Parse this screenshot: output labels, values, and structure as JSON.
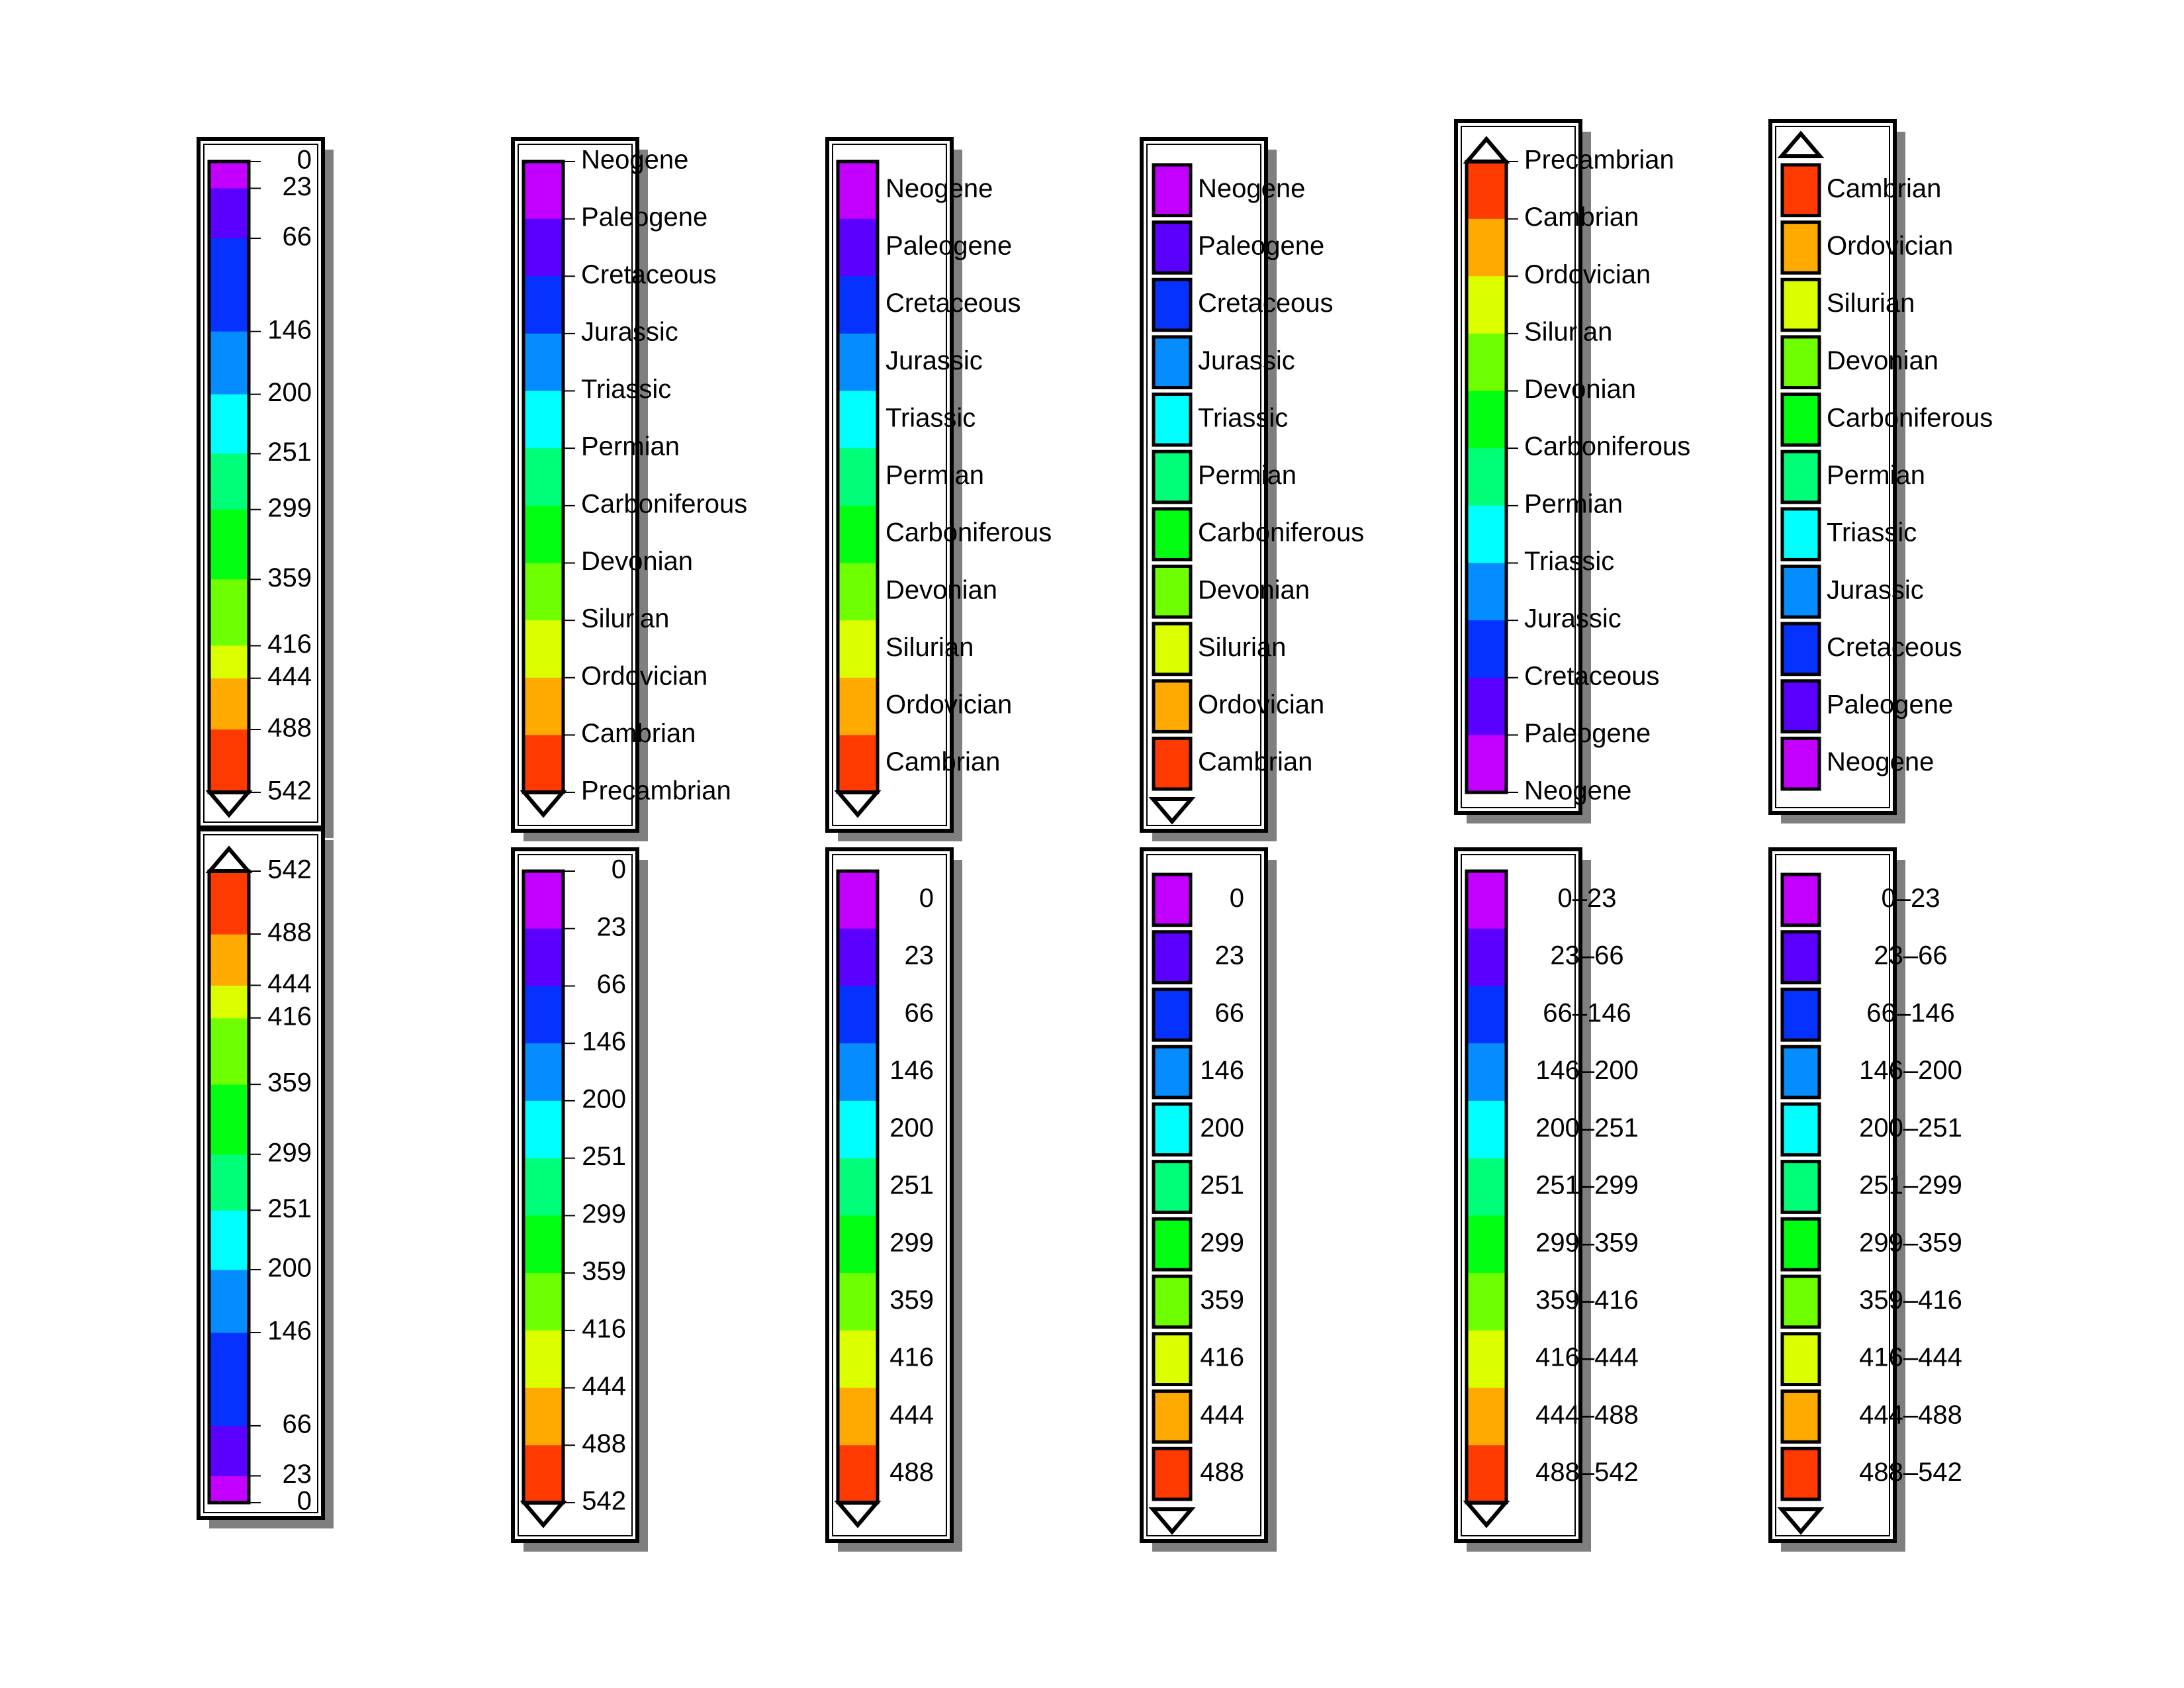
{
  "colors": {
    "palette": [
      "#c300ff",
      "#5b00ff",
      "#0532ff",
      "#058cff",
      "#00ffff",
      "#00ff78",
      "#00ff12",
      "#6eff00",
      "#dcff00",
      "#ffaa00",
      "#ff3a00"
    ],
    "frame": "#000000",
    "shadow": "#7f7f7f",
    "background": "#ffffff"
  },
  "chart_data": [
    {
      "type": "colorbar",
      "style": "continuous",
      "ticks": [
        "0",
        "23",
        "66",
        "146",
        "200",
        "251",
        "299",
        "359",
        "416",
        "444",
        "488",
        "542"
      ],
      "values": [
        0,
        23,
        66,
        146,
        200,
        251,
        299,
        359,
        416,
        444,
        488,
        542
      ],
      "triangle_end": "bottom"
    },
    {
      "type": "colorbar",
      "style": "equal",
      "ticks": [
        "Neogene",
        "Paleogene",
        "Cretaceous",
        "Jurassic",
        "Triassic",
        "Permian",
        "Carboniferous",
        "Devonian",
        "Silurian",
        "Ordovician",
        "Cambrian",
        "Precambrian"
      ],
      "triangle_end": "bottom"
    },
    {
      "type": "colorbar",
      "style": "equal-centered",
      "labels": [
        "Neogene",
        "Paleogene",
        "Cretaceous",
        "Jurassic",
        "Triassic",
        "Permian",
        "Carboniferous",
        "Devonian",
        "Silurian",
        "Ordovician",
        "Cambrian"
      ],
      "triangle_end": "bottom"
    },
    {
      "type": "colorbar",
      "style": "boxes",
      "labels": [
        "Neogene",
        "Paleogene",
        "Cretaceous",
        "Jurassic",
        "Triassic",
        "Permian",
        "Carboniferous",
        "Devonian",
        "Silurian",
        "Ordovician",
        "Cambrian"
      ],
      "triangle_end": "bottom"
    },
    {
      "type": "colorbar",
      "style": "equal-reversed",
      "ticks": [
        "Precambrian",
        "Cambrian",
        "Ordovician",
        "Silurian",
        "Devonian",
        "Carboniferous",
        "Permian",
        "Triassic",
        "Jurassic",
        "Cretaceous",
        "Paleogene",
        "Neogene"
      ],
      "triangle_end": "top"
    },
    {
      "type": "colorbar",
      "style": "boxes-reversed",
      "labels": [
        "Cambrian",
        "Ordovician",
        "Silurian",
        "Devonian",
        "Carboniferous",
        "Permian",
        "Triassic",
        "Jurassic",
        "Cretaceous",
        "Paleogene",
        "Neogene"
      ],
      "triangle_end": "top"
    },
    {
      "type": "colorbar",
      "style": "continuous-reversed",
      "ticks": [
        "542",
        "488",
        "444",
        "416",
        "359",
        "299",
        "251",
        "200",
        "146",
        "66",
        "23",
        "0"
      ],
      "values": [
        542,
        488,
        444,
        416,
        359,
        299,
        251,
        200,
        146,
        66,
        23,
        0
      ],
      "triangle_end": "top"
    },
    {
      "type": "colorbar",
      "style": "equal",
      "ticks": [
        "0",
        "23",
        "66",
        "146",
        "200",
        "251",
        "299",
        "359",
        "416",
        "444",
        "488",
        "542"
      ],
      "triangle_end": "bottom"
    },
    {
      "type": "colorbar",
      "style": "equal-centered",
      "labels": [
        "0",
        "23",
        "66",
        "146",
        "200",
        "251",
        "299",
        "359",
        "416",
        "444",
        "488"
      ],
      "triangle_end": "bottom"
    },
    {
      "type": "colorbar",
      "style": "boxes",
      "labels": [
        "0",
        "23",
        "66",
        "146",
        "200",
        "251",
        "299",
        "359",
        "416",
        "444",
        "488"
      ],
      "triangle_end": "bottom"
    },
    {
      "type": "colorbar",
      "style": "equal-ranges",
      "labels": [
        "0–23",
        "23–66",
        "66–146",
        "146–200",
        "200–251",
        "251–299",
        "299–359",
        "359–416",
        "416–444",
        "444–488",
        "488–542"
      ],
      "triangle_end": "bottom"
    },
    {
      "type": "colorbar",
      "style": "boxes-ranges",
      "labels": [
        "0–23",
        "23–66",
        "66–146",
        "146–200",
        "200–251",
        "251–299",
        "299–359",
        "359–416",
        "416–444",
        "444–488",
        "488–542"
      ],
      "triangle_end": "bottom"
    }
  ]
}
